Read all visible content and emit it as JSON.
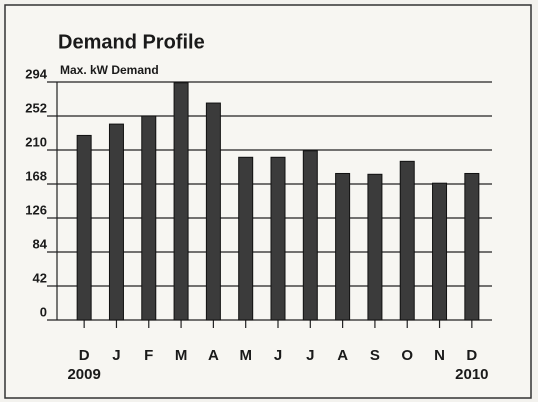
{
  "chart_data": {
    "type": "bar",
    "title": "Demand Profile",
    "y_label": "Max. kW Demand",
    "categories": [
      "D",
      "J",
      "F",
      "M",
      "A",
      "M",
      "J",
      "J",
      "A",
      "S",
      "O",
      "N",
      "D"
    ],
    "year_labels": [
      "2009",
      "2010"
    ],
    "values": [
      228,
      242,
      252,
      293,
      268,
      201,
      201,
      209,
      181,
      180,
      196,
      169,
      181
    ],
    "color": "#3b3b3b",
    "ylim": [
      0,
      294
    ],
    "yticks": [
      0,
      42,
      84,
      126,
      168,
      210,
      252,
      294
    ],
    "grid": true
  }
}
